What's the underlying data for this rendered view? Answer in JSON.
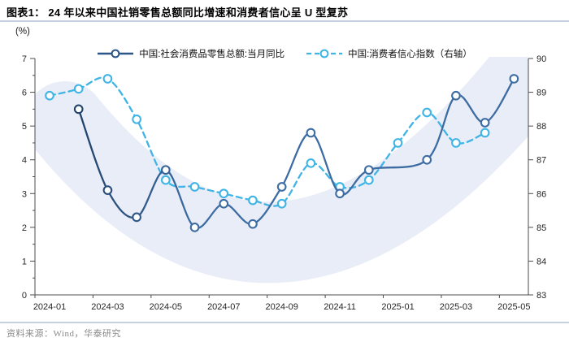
{
  "header": {
    "title": "图表1： 24 年以来中国社销零售总额同比增速和消费者信心呈 U 型复苏"
  },
  "unit_label": "(%)",
  "legend": {
    "items": [
      {
        "label": "中国:社会消费品零售总额:当月同比",
        "style": "solid",
        "color": "#3d6ca3"
      },
      {
        "label": "中国:消费者信心指数（右轴）",
        "style": "dashed",
        "color": "#3fb4e5"
      }
    ]
  },
  "footer": {
    "source_text": "资料来源：Wind，华泰研究"
  },
  "colors": {
    "retail_line": "#3d6ca3",
    "retail_line_dark_start": "#1f3f66",
    "cci_line": "#3fb4e5",
    "u_band": "#e9edf7",
    "axis": "#4d4d4d",
    "tick_text": "#262626",
    "divider": "#c5d1e0"
  },
  "chart_data": {
    "type": "line",
    "title": "24 年以来中国社销零售总额同比增速和消费者信心呈 U 型复苏",
    "xlabel": "",
    "ylabel": "(%)",
    "grid": false,
    "legend_position": "top-center",
    "x_tick_labels": [
      "2024-01",
      "2024-03",
      "2024-05",
      "2024-07",
      "2024-09",
      "2024-11",
      "2025-01",
      "2025-03",
      "2025-05"
    ],
    "left_axis": {
      "label": "(%)",
      "min": 0,
      "max": 7,
      "ticks": [
        0,
        1,
        2,
        3,
        4,
        5,
        6,
        7
      ],
      "minor_tick_step": 0.5
    },
    "right_axis": {
      "label": "中国:消费者信心指数",
      "min": 83,
      "max": 90,
      "ticks": [
        83,
        84,
        85,
        86,
        87,
        88,
        89,
        90
      ]
    },
    "series": [
      {
        "name": "中国:社会消费品零售总额:当月同比",
        "axis": "left",
        "style": "solid",
        "color": "#3d6ca3",
        "x": [
          "2024-02",
          "2024-03",
          "2024-04",
          "2024-05",
          "2024-06",
          "2024-07",
          "2024-08",
          "2024-09",
          "2024-10",
          "2024-11",
          "2024-12",
          "2025-02",
          "2025-03",
          "2025-04",
          "2025-05"
        ],
        "values": [
          5.5,
          3.1,
          2.3,
          3.7,
          2.0,
          2.7,
          2.1,
          3.2,
          4.8,
          3.0,
          3.7,
          4.0,
          5.9,
          5.1,
          6.4
        ]
      },
      {
        "name": "中国:消费者信心指数（右轴）",
        "axis": "right",
        "style": "dashed",
        "color": "#3fb4e5",
        "x": [
          "2024-01",
          "2024-02",
          "2024-03",
          "2024-04",
          "2024-05",
          "2024-06",
          "2024-07",
          "2024-08",
          "2024-09",
          "2024-10",
          "2024-11",
          "2024-12",
          "2025-01",
          "2025-02",
          "2025-03",
          "2025-04"
        ],
        "values": [
          88.9,
          89.1,
          89.4,
          88.2,
          86.4,
          86.2,
          86.0,
          85.8,
          85.7,
          86.9,
          86.2,
          86.4,
          87.5,
          88.4,
          87.5,
          87.8
        ]
      }
    ],
    "annotations": {
      "u_band": {
        "shape": "U-curve highlight band",
        "color": "#e9edf7"
      }
    }
  }
}
